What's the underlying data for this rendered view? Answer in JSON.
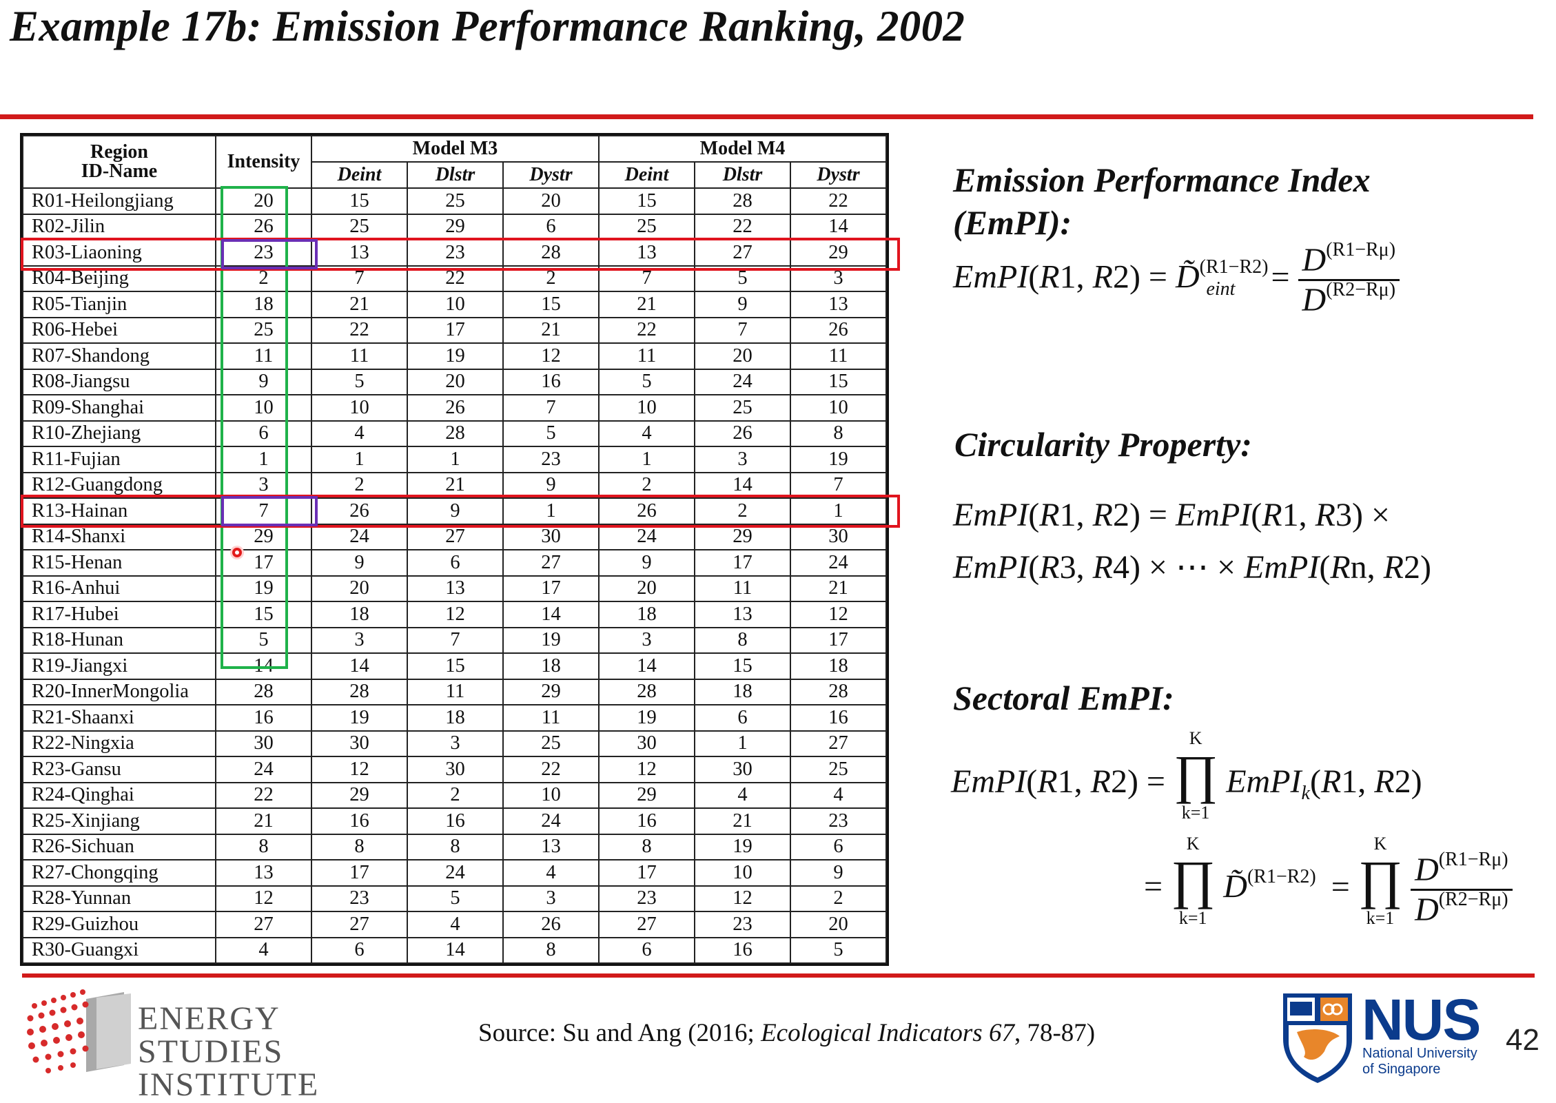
{
  "title": "Example 17b: Emission Performance Ranking, 2002",
  "table": {
    "header": {
      "region": "Region",
      "id_name": "ID-Name",
      "intensity": "Intensity",
      "m3": "Model M3",
      "m4": "Model M4",
      "sub": [
        "Deint",
        "Dlstr",
        "Dystr",
        "Deint",
        "Dlstr",
        "Dystr"
      ]
    },
    "rows": [
      [
        "R01-Heilongjiang",
        "20",
        "15",
        "25",
        "20",
        "15",
        "28",
        "22"
      ],
      [
        "R02-Jilin",
        "26",
        "25",
        "29",
        "6",
        "25",
        "22",
        "14"
      ],
      [
        "R03-Liaoning",
        "23",
        "13",
        "23",
        "28",
        "13",
        "27",
        "29"
      ],
      [
        "R04-Beijing",
        "2",
        "7",
        "22",
        "2",
        "7",
        "5",
        "3"
      ],
      [
        "R05-Tianjin",
        "18",
        "21",
        "10",
        "15",
        "21",
        "9",
        "13"
      ],
      [
        "R06-Hebei",
        "25",
        "22",
        "17",
        "21",
        "22",
        "7",
        "26"
      ],
      [
        "R07-Shandong",
        "11",
        "11",
        "19",
        "12",
        "11",
        "20",
        "11"
      ],
      [
        "R08-Jiangsu",
        "9",
        "5",
        "20",
        "16",
        "5",
        "24",
        "15"
      ],
      [
        "R09-Shanghai",
        "10",
        "10",
        "26",
        "7",
        "10",
        "25",
        "10"
      ],
      [
        "R10-Zhejiang",
        "6",
        "4",
        "28",
        "5",
        "4",
        "26",
        "8"
      ],
      [
        "R11-Fujian",
        "1",
        "1",
        "1",
        "23",
        "1",
        "3",
        "19"
      ],
      [
        "R12-Guangdong",
        "3",
        "2",
        "21",
        "9",
        "2",
        "14",
        "7"
      ],
      [
        "R13-Hainan",
        "7",
        "26",
        "9",
        "1",
        "26",
        "2",
        "1"
      ],
      [
        "R14-Shanxi",
        "29",
        "24",
        "27",
        "30",
        "24",
        "29",
        "30"
      ],
      [
        "R15-Henan",
        "17",
        "9",
        "6",
        "27",
        "9",
        "17",
        "24"
      ],
      [
        "R16-Anhui",
        "19",
        "20",
        "13",
        "17",
        "20",
        "11",
        "21"
      ],
      [
        "R17-Hubei",
        "15",
        "18",
        "12",
        "14",
        "18",
        "13",
        "12"
      ],
      [
        "R18-Hunan",
        "5",
        "3",
        "7",
        "19",
        "3",
        "8",
        "17"
      ],
      [
        "R19-Jiangxi",
        "14",
        "14",
        "15",
        "18",
        "14",
        "15",
        "18"
      ],
      [
        "R20-InnerMongolia",
        "28",
        "28",
        "11",
        "29",
        "28",
        "18",
        "28"
      ],
      [
        "R21-Shaanxi",
        "16",
        "19",
        "18",
        "11",
        "19",
        "6",
        "16"
      ],
      [
        "R22-Ningxia",
        "30",
        "30",
        "3",
        "25",
        "30",
        "1",
        "27"
      ],
      [
        "R23-Gansu",
        "24",
        "12",
        "30",
        "22",
        "12",
        "30",
        "25"
      ],
      [
        "R24-Qinghai",
        "22",
        "29",
        "2",
        "10",
        "29",
        "4",
        "4"
      ],
      [
        "R25-Xinjiang",
        "21",
        "16",
        "16",
        "24",
        "16",
        "21",
        "23"
      ],
      [
        "R26-Sichuan",
        "8",
        "8",
        "8",
        "13",
        "8",
        "19",
        "6"
      ],
      [
        "R27-Chongqing",
        "13",
        "17",
        "24",
        "4",
        "17",
        "10",
        "9"
      ],
      [
        "R28-Yunnan",
        "12",
        "23",
        "5",
        "3",
        "23",
        "12",
        "2"
      ],
      [
        "R29-Guizhou",
        "27",
        "27",
        "4",
        "26",
        "27",
        "23",
        "20"
      ],
      [
        "R30-Guangxi",
        "4",
        "6",
        "14",
        "8",
        "6",
        "16",
        "5"
      ]
    ]
  },
  "panel": {
    "empi_heading_1": "Emission Performance Index",
    "empi_heading_2": "(EmPI):",
    "circ_heading": "Circularity Property:",
    "sect_heading": "Sectoral EmPI:"
  },
  "footer": {
    "esi_1": "ENERGY",
    "esi_2": "STUDIES",
    "esi_3": "INSTITUTE",
    "source_prefix": "Source: Su and Ang (2016; ",
    "source_journal": "Ecological Indicators 67",
    "source_suffix": ", 78-87)",
    "nus": "NUS",
    "nus_sub_1": "National University",
    "nus_sub_2": "of Singapore",
    "page": "42"
  },
  "colors": {
    "accent_red": "#d11a1a",
    "green_box": "#1fb24a",
    "purple_box": "#6a2fb5",
    "nus_blue": "#0b3b8c"
  }
}
